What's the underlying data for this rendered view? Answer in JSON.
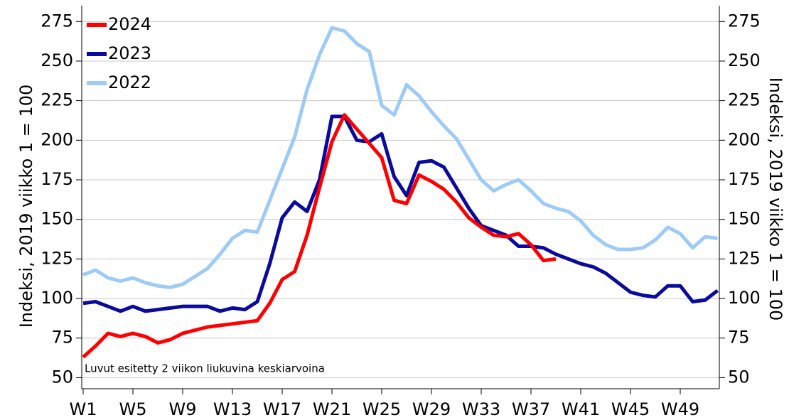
{
  "chart_data": {
    "type": "line",
    "ylabel": "Indeksi, 2019 viikko 1 = 100",
    "y2label": "Indeksi, 2019 viikko 1 = 100",
    "annotation": "Luvut esitetty 2 viikon liukuvina keskiarvoina",
    "categories": [
      "W1",
      null,
      null,
      null,
      "W5",
      null,
      null,
      null,
      "W9",
      null,
      null,
      null,
      "W13",
      null,
      null,
      null,
      "W17",
      null,
      null,
      null,
      "W21",
      null,
      null,
      null,
      "W25",
      null,
      null,
      null,
      "W29",
      null,
      null,
      null,
      "W33",
      null,
      null,
      null,
      "W37",
      null,
      null,
      null,
      "W41",
      null,
      null,
      null,
      "W45",
      null,
      null,
      null,
      "W49",
      null,
      null,
      null
    ],
    "series": [
      {
        "name": "2024",
        "color": "#ff0000",
        "values": [
          63,
          70,
          78,
          76,
          78,
          76,
          72,
          74,
          78,
          80,
          82,
          83,
          84,
          85,
          86,
          97,
          112,
          117,
          140,
          170,
          199,
          216,
          207,
          198,
          189,
          162,
          160,
          178,
          174,
          169,
          161,
          151,
          145,
          140,
          139,
          141,
          134,
          124,
          125,
          null,
          null,
          null,
          null,
          null,
          null,
          null,
          null,
          null,
          null,
          null,
          null,
          null
        ]
      },
      {
        "name": "2023",
        "color": "#0a0a9c",
        "values": [
          97,
          98,
          95,
          92,
          95,
          92,
          93,
          94,
          95,
          95,
          95,
          92,
          94,
          93,
          98,
          122,
          151,
          161,
          155,
          175,
          215,
          215,
          200,
          199,
          204,
          177,
          165,
          186,
          187,
          183,
          170,
          157,
          146,
          143,
          140,
          133,
          133,
          132,
          128,
          125,
          122,
          120,
          116,
          110,
          104,
          102,
          101,
          108,
          108,
          98,
          99,
          105
        ]
      },
      {
        "name": "2022",
        "color": "#9ecbf5",
        "values": [
          115,
          118,
          113,
          111,
          113,
          110,
          108,
          107,
          109,
          114,
          119,
          128,
          138,
          143,
          142,
          162,
          182,
          202,
          232,
          254,
          271,
          269,
          261,
          256,
          222,
          216,
          235,
          228,
          218,
          209,
          201,
          188,
          175,
          168,
          172,
          175,
          168,
          160,
          157,
          155,
          149,
          140,
          134,
          131,
          131,
          132,
          137,
          145,
          141,
          132,
          139,
          138
        ]
      }
    ],
    "ylim": [
      43,
      285
    ],
    "yticks": [
      50,
      75,
      100,
      125,
      150,
      175,
      200,
      225,
      250,
      275
    ],
    "y2lim": [
      43,
      285
    ],
    "y2ticks": [
      50,
      75,
      100,
      125,
      150,
      175,
      200,
      225,
      250,
      275
    ],
    "grid": true,
    "legend": "top-left"
  }
}
